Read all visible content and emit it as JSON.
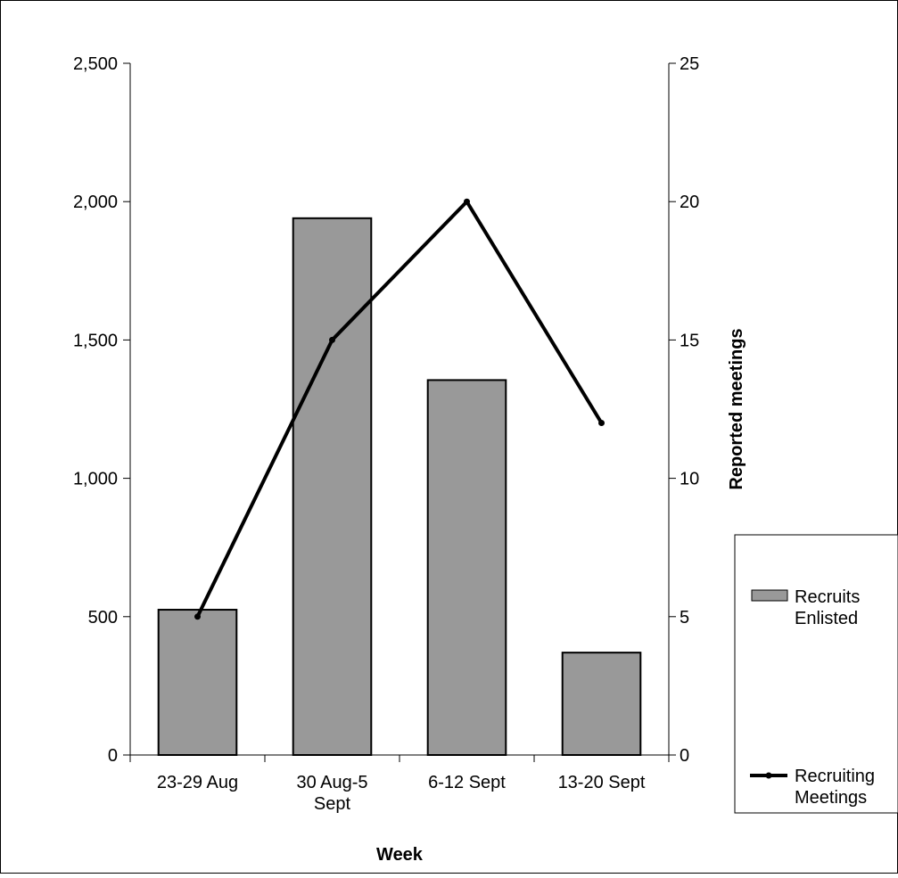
{
  "chart_data": {
    "type": "bar",
    "title": "",
    "categories": [
      "23-29 Aug",
      "30 Aug-5 Sept",
      "6-12 Sept",
      "13-20 Sept"
    ],
    "category_lines": [
      [
        "23-29 Aug"
      ],
      [
        "30 Aug-5",
        "Sept"
      ],
      [
        "6-12 Sept"
      ],
      [
        "13-20 Sept"
      ]
    ],
    "xlabel": "Week",
    "ylabel": "",
    "y2label": "Reported meetings",
    "ylim": [
      0,
      2500
    ],
    "y2lim": [
      0,
      25
    ],
    "yticks": [
      "0",
      "500",
      "1,000",
      "1,500",
      "2,000",
      "2,500"
    ],
    "y2ticks": [
      "0",
      "5",
      "10",
      "15",
      "20",
      "25"
    ],
    "series": [
      {
        "name": "Recruits Enlisted",
        "legend_lines": [
          "Recruits",
          "Enlisted"
        ],
        "type": "bar",
        "axis": "left",
        "color": "#999999",
        "values": [
          525,
          1940,
          1355,
          370
        ]
      },
      {
        "name": "Recruiting Meetings",
        "legend_lines": [
          "Recruiting",
          "Meetings"
        ],
        "type": "line",
        "axis": "right",
        "color": "#000000",
        "values": [
          5,
          15,
          20,
          12
        ]
      }
    ],
    "grid": false,
    "legend": "right"
  }
}
